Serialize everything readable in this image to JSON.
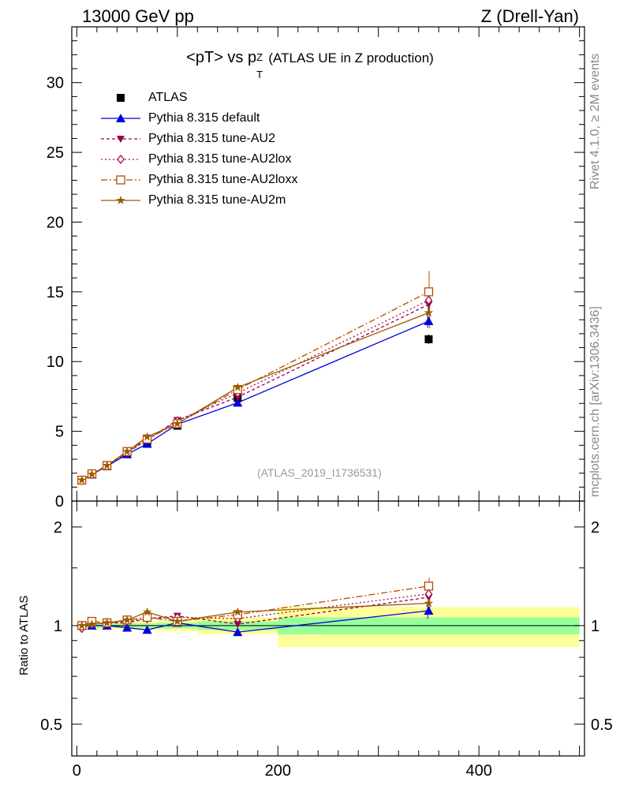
{
  "header": {
    "energy_label": "13000 GeV pp",
    "process_label": "Z (Drell-Yan)"
  },
  "title": {
    "main": "<pT> vs p",
    "sup": "Z",
    "sub": "T",
    "rest": "(ATLAS UE in Z production)"
  },
  "side_labels": {
    "rivet": "Rivet 4.1.0, ≥ 2M events",
    "mcplots": "mcplots.cern.ch [arXiv:1306.3436]"
  },
  "analysis_ref": "(ATLAS_2019_I1736531)",
  "ratio_ylabel": "Ratio to ATLAS",
  "legend": [
    {
      "label": "ATLAS",
      "color": "#000000",
      "marker": "square",
      "dash": ""
    },
    {
      "label": "Pythia 8.315 default",
      "color": "#0000dd",
      "marker": "triangle",
      "dash": ""
    },
    {
      "label": "Pythia 8.315 tune-AU2",
      "color": "#99004d",
      "marker": "triangle-down",
      "dash": "4,3"
    },
    {
      "label": "Pythia 8.315 tune-AU2lox",
      "color": "#a0104a",
      "marker": "diamond-open",
      "dash": "2,3"
    },
    {
      "label": "Pythia 8.315 tune-AU2loxx",
      "color": "#b84a00",
      "marker": "square-open",
      "dash": "8,3,2,3"
    },
    {
      "label": "Pythia 8.315 tune-AU2m",
      "color": "#9a5a00",
      "marker": "star",
      "dash": ""
    }
  ],
  "chart_data": [
    {
      "type": "line",
      "panel": "main",
      "title": "<pT> vs pT^Z (ATLAS UE in Z production)",
      "xlim": [
        -5,
        505
      ],
      "ylim": [
        0,
        34
      ],
      "yticks": [
        0,
        5,
        10,
        15,
        20,
        25,
        30
      ],
      "ytick_labels": [
        "0",
        "5",
        "10",
        "15",
        "20",
        "25",
        "30"
      ],
      "x": [
        5,
        15,
        30,
        50,
        70,
        100,
        160,
        350
      ],
      "series": [
        {
          "name": "ATLAS",
          "values": [
            1.5,
            1.9,
            2.5,
            3.4,
            4.2,
            5.4,
            7.4,
            11.6
          ],
          "err": [
            0.05,
            0.05,
            0.08,
            0.1,
            0.12,
            0.15,
            0.3,
            0.35
          ]
        },
        {
          "name": "Pythia 8.315 default",
          "values": [
            1.5,
            1.9,
            2.5,
            3.35,
            4.1,
            5.5,
            7.05,
            12.9
          ]
        },
        {
          "name": "Pythia 8.315 tune-AU2",
          "values": [
            1.5,
            1.92,
            2.55,
            3.45,
            4.4,
            5.8,
            7.45,
            14.1
          ]
        },
        {
          "name": "Pythia 8.315 tune-AU2lox",
          "values": [
            1.47,
            1.92,
            2.55,
            3.5,
            4.4,
            5.75,
            7.75,
            14.4
          ]
        },
        {
          "name": "Pythia 8.315 tune-AU2loxx",
          "values": [
            1.5,
            1.95,
            2.55,
            3.55,
            4.45,
            5.55,
            8.0,
            15.0
          ]
        },
        {
          "name": "Pythia 8.315 tune-AU2m",
          "values": [
            1.5,
            1.92,
            2.55,
            3.55,
            4.6,
            5.55,
            8.15,
            13.5
          ]
        }
      ]
    },
    {
      "type": "line",
      "panel": "ratio",
      "ylabel": "Ratio to ATLAS",
      "xlim": [
        -5,
        505
      ],
      "ylim": [
        0.4,
        2.4
      ],
      "ylog": true,
      "yticks": [
        0.5,
        1,
        2
      ],
      "ytick_labels": [
        "0.5",
        "1",
        "2"
      ],
      "xticks": [
        0,
        200,
        400
      ],
      "xtick_labels": [
        "0",
        "200",
        "400"
      ],
      "x": [
        5,
        15,
        30,
        50,
        70,
        100,
        160,
        350
      ],
      "bands": {
        "x_edges": [
          0,
          10,
          20,
          40,
          60,
          80,
          120,
          200,
          500
        ],
        "stat_syst": [
          0.03,
          0.03,
          0.03,
          0.03,
          0.03,
          0.04,
          0.06,
          0.14
        ],
        "stat": [
          0.015,
          0.015,
          0.015,
          0.015,
          0.015,
          0.02,
          0.03,
          0.06
        ]
      },
      "series": [
        {
          "name": "Pythia 8.315 default",
          "values": [
            1.0,
            1.0,
            1.0,
            0.985,
            0.97,
            1.02,
            0.955,
            1.11
          ]
        },
        {
          "name": "Pythia 8.315 tune-AU2",
          "values": [
            1.0,
            1.01,
            1.02,
            1.02,
            1.05,
            1.07,
            1.01,
            1.22
          ]
        },
        {
          "name": "Pythia 8.315 tune-AU2lox",
          "values": [
            0.98,
            1.01,
            1.02,
            1.03,
            1.05,
            1.06,
            1.05,
            1.25
          ]
        },
        {
          "name": "Pythia 8.315 tune-AU2loxx",
          "values": [
            1.0,
            1.03,
            1.02,
            1.04,
            1.06,
            1.03,
            1.08,
            1.32
          ]
        },
        {
          "name": "Pythia 8.315 tune-AU2m",
          "values": [
            1.0,
            1.01,
            1.02,
            1.04,
            1.1,
            1.03,
            1.1,
            1.17
          ]
        }
      ]
    }
  ]
}
